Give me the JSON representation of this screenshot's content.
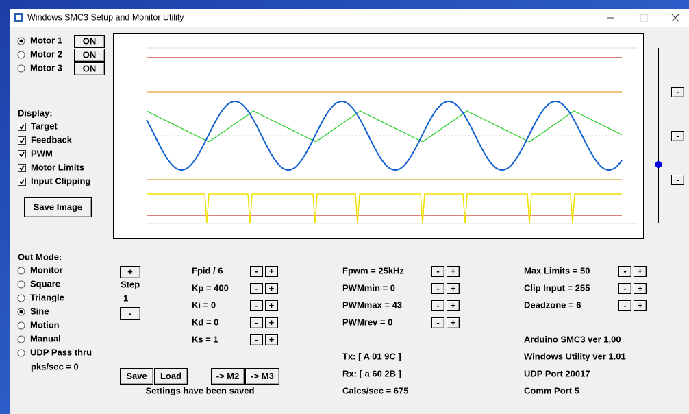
{
  "window": {
    "title": "Windows SMC3 Setup and Monitor Utility"
  },
  "motors": [
    {
      "label": "Motor 1",
      "selected": true,
      "button": "ON"
    },
    {
      "label": "Motor 2",
      "selected": false,
      "button": "ON"
    },
    {
      "label": "Motor 3",
      "selected": false,
      "button": "ON"
    }
  ],
  "display": {
    "label": "Display:",
    "options": [
      {
        "label": "Target",
        "checked": true
      },
      {
        "label": "Feedback",
        "checked": true
      },
      {
        "label": "PWM",
        "checked": true
      },
      {
        "label": "Motor Limits",
        "checked": true
      },
      {
        "label": "Input Clipping",
        "checked": true
      }
    ]
  },
  "save_image": "Save Image",
  "out_mode": {
    "label": "Out Mode:",
    "options": [
      {
        "label": "Monitor",
        "selected": false
      },
      {
        "label": "Square",
        "selected": false
      },
      {
        "label": "Triangle",
        "selected": false
      },
      {
        "label": "Sine",
        "selected": true
      },
      {
        "label": "Motion",
        "selected": false
      },
      {
        "label": "Manual",
        "selected": false
      },
      {
        "label": "UDP Pass thru",
        "selected": false
      }
    ],
    "rate": "pks/sec = 0"
  },
  "step": {
    "plus": "+",
    "label": "Step",
    "value": 1,
    "minus": "-"
  },
  "spin": {
    "minus": "-",
    "plus": "+"
  },
  "params": [
    [
      "Fpid / 6",
      "Kp = 400",
      "Ki = 0",
      "Kd = 0",
      "Ks = 1"
    ],
    [
      "Fpwm = 25kHz",
      "PWMmin = 0",
      "PWMmax = 43",
      "PWMrev = 0"
    ],
    [
      "Max Limits = 50",
      "Clip Input = 255",
      "Deadzone = 6"
    ]
  ],
  "status": [
    "Tx: [ A 01 9C ]",
    "Rx: [ a 60 2B ]",
    "Calcs/sec = 675"
  ],
  "info": [
    "Arduino SMC3 ver 1,00",
    "Windows Utility ver 1.01",
    "UDP Port 20017",
    "Comm Port 5"
  ],
  "buttons": [
    "Save",
    "Load",
    "-> M2",
    "-> M3"
  ],
  "message": "Settings have been saved"
}
